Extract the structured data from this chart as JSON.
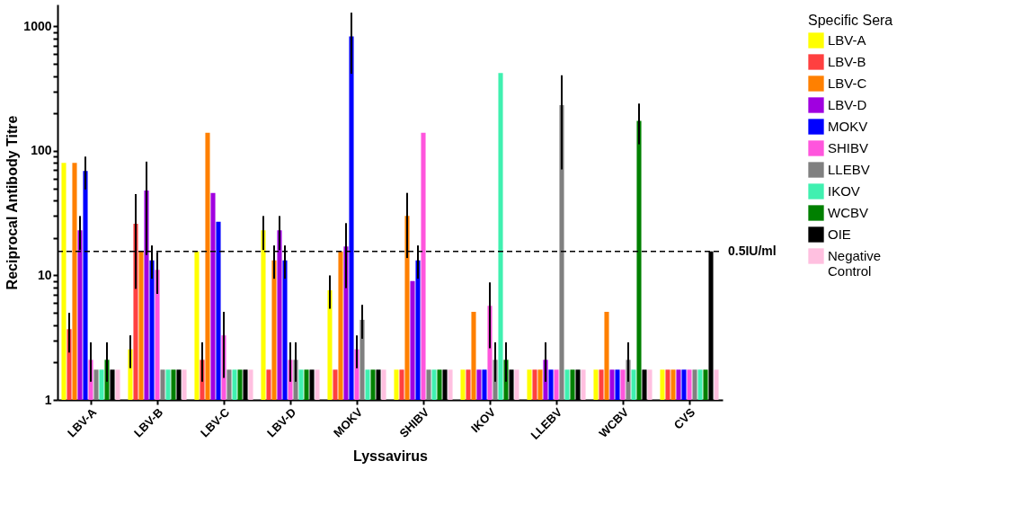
{
  "chart_data": {
    "type": "bar",
    "xlabel": "Lyssavirus",
    "ylabel": "Reciprocal Antibody Titre",
    "legend_title": "Specific Sera",
    "legend": "right",
    "log": true,
    "grid": false,
    "categories": [
      "LBV-A",
      "LBV-B",
      "LBV-C",
      "LBV-D",
      "MOKV",
      "SHIBV",
      "IKOV",
      "LLEBV",
      "WCBV",
      "CVS"
    ],
    "ylim": [
      1,
      1500
    ],
    "yticks": [
      1,
      {
        "value": 2,
        "label": null
      },
      {
        "value": 3,
        "label": null
      },
      {
        "value": 4,
        "label": null
      },
      {
        "value": 5,
        "label": null
      },
      {
        "value": 6,
        "label": null
      },
      {
        "value": 7,
        "label": null
      },
      {
        "value": 8,
        "label": null
      },
      {
        "value": 9,
        "label": null
      },
      10,
      {
        "value": 20,
        "label": null
      },
      {
        "value": 30,
        "label": null
      },
      {
        "value": 40,
        "label": null
      },
      {
        "value": 50,
        "label": null
      },
      {
        "value": 60,
        "label": null
      },
      {
        "value": 70,
        "label": null
      },
      {
        "value": 80,
        "label": null
      },
      {
        "value": 90,
        "label": null
      },
      100,
      {
        "value": 200,
        "label": null
      },
      {
        "value": 300,
        "label": null
      },
      {
        "value": 400,
        "label": null
      },
      {
        "value": 500,
        "label": null
      },
      {
        "value": 600,
        "label": null
      },
      {
        "value": 700,
        "label": null
      },
      {
        "value": 800,
        "label": null
      },
      {
        "value": 900,
        "label": null
      },
      1000
    ],
    "ref_lines": [
      {
        "axis": "y",
        "value": 15.6,
        "label": "0.5IU/ml",
        "color": "#000000",
        "line_style": "dashed"
      }
    ],
    "series": [
      {
        "name": "LBV-A",
        "color": "#ffff00",
        "values": [
          80,
          2.55,
          15.6,
          23,
          7.6,
          1.75,
          1.75,
          1.75,
          1.75,
          1.75
        ],
        "errors": [
          null,
          [
            1.8,
            3.3
          ],
          null,
          [
            16,
            30
          ],
          [
            5.4,
            10
          ],
          null,
          null,
          null,
          null,
          null
        ]
      },
      {
        "name": "LBV-B",
        "color": "#ff4040",
        "values": [
          3.7,
          26,
          2.1,
          1.75,
          1.75,
          1.75,
          1.75,
          1.75,
          1.75,
          1.75
        ],
        "errors": [
          [
            2.4,
            5.0
          ],
          [
            7.8,
            45
          ],
          [
            1.4,
            2.9
          ],
          null,
          null,
          null,
          null,
          null,
          null,
          null
        ]
      },
      {
        "name": "LBV-C",
        "color": "#ff8000",
        "values": [
          80,
          15.6,
          140,
          13.2,
          15.6,
          30,
          5.1,
          1.75,
          5.1,
          1.75
        ],
        "errors": [
          null,
          null,
          null,
          [
            9.4,
            17.4
          ],
          null,
          [
            13.8,
            46
          ],
          null,
          null,
          null,
          null
        ]
      },
      {
        "name": "LBV-D",
        "color": "#a000e0",
        "values": [
          23,
          48,
          46,
          23,
          17.1,
          9.0,
          1.75,
          2.1,
          1.75,
          1.75
        ],
        "errors": [
          [
            16,
            30
          ],
          [
            14.6,
            82
          ],
          null,
          [
            16,
            30
          ],
          [
            7.9,
            26.3
          ],
          null,
          null,
          [
            1.4,
            2.9
          ],
          null,
          null
        ]
      },
      {
        "name": "MOKV",
        "color": "#0000ff",
        "values": [
          69,
          13.2,
          27,
          13.2,
          832,
          13.2,
          1.75,
          1.75,
          1.75,
          1.75
        ],
        "errors": [
          [
            49,
            90
          ],
          [
            9.4,
            17.4
          ],
          null,
          [
            9.4,
            17.4
          ],
          [
            417,
            1290
          ],
          [
            9.4,
            17.4
          ],
          null,
          null,
          null,
          null
        ]
      },
      {
        "name": "SHIBV",
        "color": "#ff55dd",
        "values": [
          2.1,
          11.1,
          3.3,
          2.1,
          2.55,
          140,
          5.7,
          1.75,
          1.75,
          1.75
        ],
        "errors": [
          [
            1.4,
            2.9
          ],
          [
            7.1,
            15.4
          ],
          [
            1.5,
            5.1
          ],
          [
            1.4,
            2.9
          ],
          [
            1.8,
            3.3
          ],
          null,
          [
            2.6,
            8.8
          ],
          null,
          null,
          null
        ]
      },
      {
        "name": "LLEBV",
        "color": "#808080",
        "values": [
          1.75,
          1.75,
          1.75,
          2.1,
          4.4,
          1.75,
          2.1,
          233,
          2.1,
          1.75
        ],
        "errors": [
          null,
          null,
          null,
          [
            1.4,
            2.9
          ],
          [
            3.1,
            5.8
          ],
          null,
          [
            1.4,
            2.9
          ],
          [
            71,
            405
          ],
          [
            1.4,
            2.9
          ],
          null
        ]
      },
      {
        "name": "IKOV",
        "color": "#40f0b0",
        "values": [
          1.75,
          1.75,
          1.75,
          1.75,
          1.75,
          1.75,
          423,
          1.75,
          1.75,
          1.75
        ]
      },
      {
        "name": "WCBV",
        "color": "#008000",
        "values": [
          2.1,
          1.75,
          1.75,
          1.75,
          1.75,
          1.75,
          2.1,
          1.75,
          174,
          1.75
        ],
        "errors": [
          [
            1.4,
            2.9
          ],
          null,
          null,
          null,
          null,
          null,
          [
            1.4,
            2.9
          ],
          null,
          [
            113,
            240
          ],
          null
        ]
      },
      {
        "name": "OIE",
        "color": "#000000",
        "values": [
          1.75,
          1.75,
          1.75,
          1.75,
          1.75,
          1.75,
          1.75,
          1.75,
          1.75,
          15.6
        ]
      },
      {
        "name": "Negative Control",
        "color": "#ffc0e0",
        "values": [
          1.75,
          1.75,
          1.75,
          1.75,
          1.75,
          1.75,
          1.75,
          1.75,
          1.75,
          1.75
        ]
      }
    ]
  }
}
